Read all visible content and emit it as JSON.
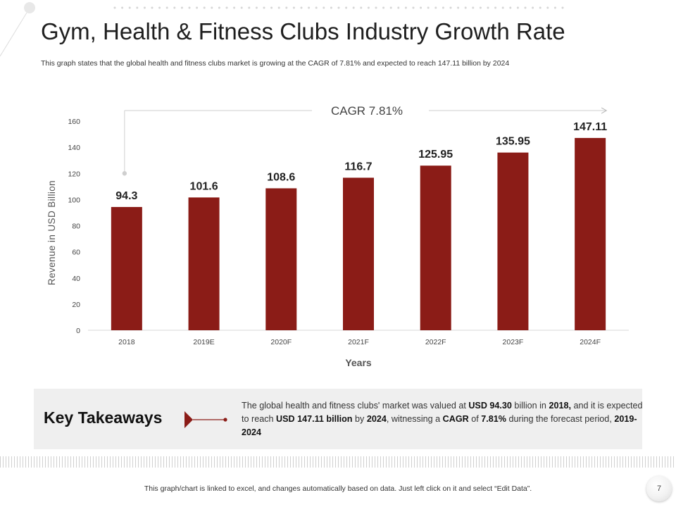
{
  "title": "Gym, Health & Fitness Clubs Industry Growth Rate",
  "subtitle": "This graph states that the global health and fitness clubs market is growing at the CAGR  of 7.81%  and expected to reach 147.11 billion by 2024",
  "chart_data": {
    "type": "bar",
    "categories": [
      "2018",
      "2019E",
      "2020F",
      "2021F",
      "2022F",
      "2023F",
      "2024F"
    ],
    "values": [
      94.3,
      101.6,
      108.6,
      116.7,
      125.95,
      135.95,
      147.11
    ],
    "data_labels": [
      "94.3",
      "101.6",
      "108.6",
      "116.7",
      "125.95",
      "135.95",
      "147.11"
    ],
    "xlabel": "Years",
    "ylabel": "Revenue in USD Billion",
    "ylim": [
      0,
      160
    ],
    "yticks": [
      0,
      20,
      40,
      60,
      80,
      100,
      120,
      140,
      160
    ],
    "annotation": "CAGR 7.81%",
    "bar_color": "#8b1c17"
  },
  "key_takeaways": {
    "heading": "Key Takeaways",
    "text_parts": [
      {
        "t": "The global health and fitness clubs' market was valued at ",
        "b": false
      },
      {
        "t": "USD 94.30",
        "b": true
      },
      {
        "t": " billion in ",
        "b": false
      },
      {
        "t": "2018,",
        "b": true
      },
      {
        "t": " and it is expected to reach ",
        "b": false
      },
      {
        "t": "USD 147.11 billion",
        "b": true
      },
      {
        "t": " by ",
        "b": false
      },
      {
        "t": "2024",
        "b": true
      },
      {
        "t": ", witnessing a ",
        "b": false
      },
      {
        "t": "CAGR",
        "b": true
      },
      {
        "t": " of ",
        "b": false
      },
      {
        "t": "7.81%",
        "b": true
      },
      {
        "t": " during the forecast period, ",
        "b": false
      },
      {
        "t": "2019-2024",
        "b": true
      }
    ]
  },
  "footer": "This graph/chart is linked to excel, and changes automatically based on data. Just left click on it and select “Edit Data”.",
  "page_number": "7",
  "colors": {
    "accent": "#8b1c17",
    "panel": "#efefef"
  }
}
